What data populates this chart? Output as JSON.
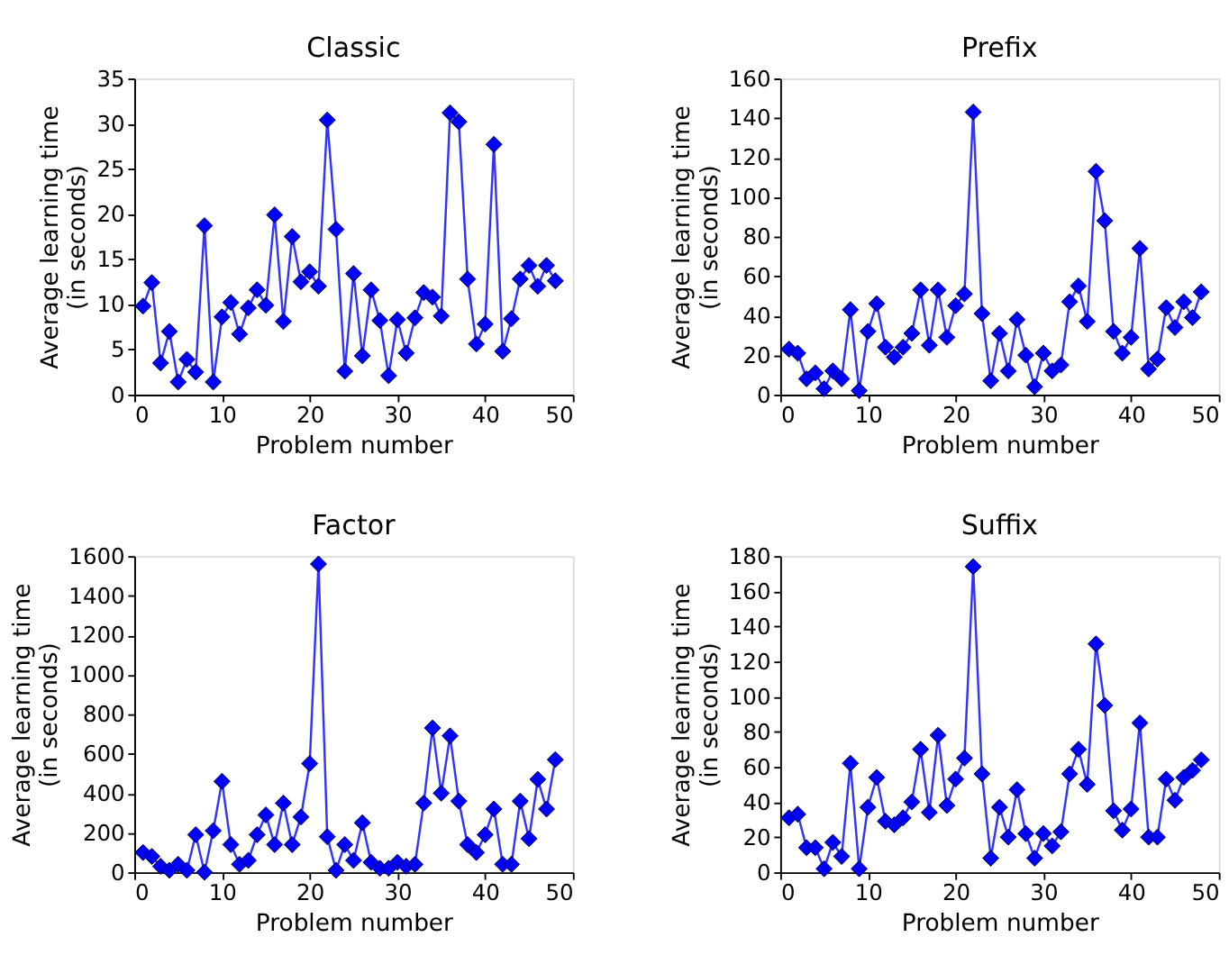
{
  "chart_data": [
    {
      "type": "line",
      "title": "Classic",
      "xlabel": "Problem number",
      "ylabel": "Average learning time\n(in seconds)",
      "marker": "diamond",
      "line_style": "solid",
      "grid": false,
      "xlim": [
        0,
        50
      ],
      "xticks": [
        0,
        10,
        20,
        30,
        40,
        50
      ],
      "ylim": [
        0,
        35
      ],
      "yticks": [
        0,
        5,
        10,
        15,
        20,
        25,
        30,
        35
      ],
      "x": [
        1,
        2,
        3,
        4,
        5,
        6,
        7,
        8,
        9,
        10,
        11,
        12,
        13,
        14,
        15,
        16,
        17,
        18,
        19,
        20,
        21,
        22,
        23,
        24,
        25,
        26,
        27,
        28,
        29,
        30,
        31,
        32,
        33,
        34,
        35,
        36,
        37,
        38,
        39,
        40,
        41,
        42,
        43,
        44,
        45,
        46,
        47,
        48
      ],
      "series": [
        {
          "color": "#0000ff",
          "values": [
            9.8,
            12.4,
            3.5,
            7,
            1.4,
            3.9,
            2.5,
            18.7,
            1.4,
            8.6,
            10.2,
            6.7,
            9.6,
            11.6,
            9.9,
            19.9,
            8.1,
            17.5,
            12.5,
            13.6,
            12,
            30.4,
            18.3,
            2.6,
            13.4,
            4.3,
            11.6,
            8.2,
            2.1,
            8.3,
            4.6,
            8.5,
            11.3,
            10.8,
            8.7,
            31.2,
            30.2,
            12.8,
            5.6,
            7.8,
            27.7,
            4.8,
            8.4,
            12.8,
            14.3,
            12,
            14.3,
            12.6
          ]
        }
      ]
    },
    {
      "type": "line",
      "title": "Prefix",
      "xlabel": "Problem number",
      "ylabel": "Average learning time\n(in seconds)",
      "marker": "diamond",
      "line_style": "solid",
      "grid": false,
      "xlim": [
        0,
        50
      ],
      "xticks": [
        0,
        10,
        20,
        30,
        40,
        50
      ],
      "ylim": [
        0,
        160
      ],
      "yticks": [
        0,
        20,
        40,
        60,
        80,
        100,
        120,
        140,
        160
      ],
      "x": [
        1,
        2,
        3,
        4,
        5,
        6,
        7,
        8,
        9,
        10,
        11,
        12,
        13,
        14,
        15,
        16,
        17,
        18,
        19,
        20,
        21,
        22,
        23,
        24,
        25,
        26,
        27,
        28,
        29,
        30,
        31,
        32,
        33,
        34,
        35,
        36,
        37,
        38,
        39,
        40,
        41,
        42,
        43,
        44,
        45,
        46,
        47,
        48
      ],
      "series": [
        {
          "color": "#0000ff",
          "values": [
            23,
            21,
            8,
            11,
            3,
            12,
            8,
            43,
            2,
            32,
            46,
            24,
            19,
            24,
            31,
            53,
            25,
            53,
            29,
            45,
            51,
            143,
            41,
            7,
            31,
            12,
            38,
            20,
            4,
            21,
            12,
            15,
            47,
            55,
            37,
            113,
            88,
            32,
            21,
            29,
            74,
            13,
            18,
            44,
            34,
            47,
            39,
            52
          ]
        }
      ]
    },
    {
      "type": "line",
      "title": "Factor",
      "xlabel": "Problem number",
      "ylabel": "Average learning time\n(in seconds)",
      "marker": "diamond",
      "line_style": "solid",
      "grid": false,
      "xlim": [
        0,
        50
      ],
      "xticks": [
        0,
        10,
        20,
        30,
        40,
        50
      ],
      "ylim": [
        0,
        1600
      ],
      "yticks": [
        0,
        200,
        400,
        600,
        800,
        1000,
        1200,
        1400,
        1600
      ],
      "x": [
        1,
        2,
        3,
        4,
        5,
        6,
        7,
        8,
        9,
        10,
        11,
        12,
        13,
        14,
        15,
        16,
        17,
        18,
        19,
        20,
        21,
        22,
        23,
        24,
        25,
        26,
        27,
        28,
        29,
        30,
        31,
        32,
        33,
        34,
        35,
        36,
        37,
        38,
        39,
        40,
        41,
        42,
        43,
        44,
        45,
        46,
        47,
        48
      ],
      "series": [
        {
          "color": "#0000ff",
          "values": [
            100,
            80,
            30,
            10,
            40,
            10,
            190,
            0,
            210,
            460,
            140,
            40,
            60,
            190,
            290,
            140,
            350,
            140,
            280,
            550,
            1560,
            180,
            10,
            140,
            60,
            250,
            50,
            20,
            20,
            50,
            30,
            40,
            350,
            730,
            400,
            690,
            360,
            140,
            100,
            190,
            320,
            40,
            40,
            360,
            170,
            470,
            320,
            570
          ]
        }
      ]
    },
    {
      "type": "line",
      "title": "Suffix",
      "xlabel": "Problem number",
      "ylabel": "Average learning time\n(in seconds)",
      "marker": "diamond",
      "line_style": "solid",
      "grid": false,
      "xlim": [
        0,
        50
      ],
      "xticks": [
        0,
        10,
        20,
        30,
        40,
        50
      ],
      "ylim": [
        0,
        180
      ],
      "yticks": [
        0,
        20,
        40,
        60,
        80,
        100,
        120,
        140,
        160,
        180
      ],
      "x": [
        1,
        2,
        3,
        4,
        5,
        6,
        7,
        8,
        9,
        10,
        11,
        12,
        13,
        14,
        15,
        16,
        17,
        18,
        19,
        20,
        21,
        22,
        23,
        24,
        25,
        26,
        27,
        28,
        29,
        30,
        31,
        32,
        33,
        34,
        35,
        36,
        37,
        38,
        39,
        40,
        41,
        42,
        43,
        44,
        45,
        46,
        47,
        48
      ],
      "series": [
        {
          "color": "#0000ff",
          "values": [
            31,
            33,
            14,
            14,
            2,
            17,
            9,
            62,
            2,
            37,
            54,
            29,
            27,
            31,
            40,
            70,
            34,
            78,
            38,
            53,
            65,
            174,
            56,
            8,
            37,
            20,
            47,
            22,
            8,
            22,
            15,
            23,
            56,
            70,
            50,
            130,
            95,
            35,
            24,
            36,
            85,
            20,
            20,
            53,
            41,
            54,
            58,
            64
          ]
        }
      ]
    }
  ]
}
